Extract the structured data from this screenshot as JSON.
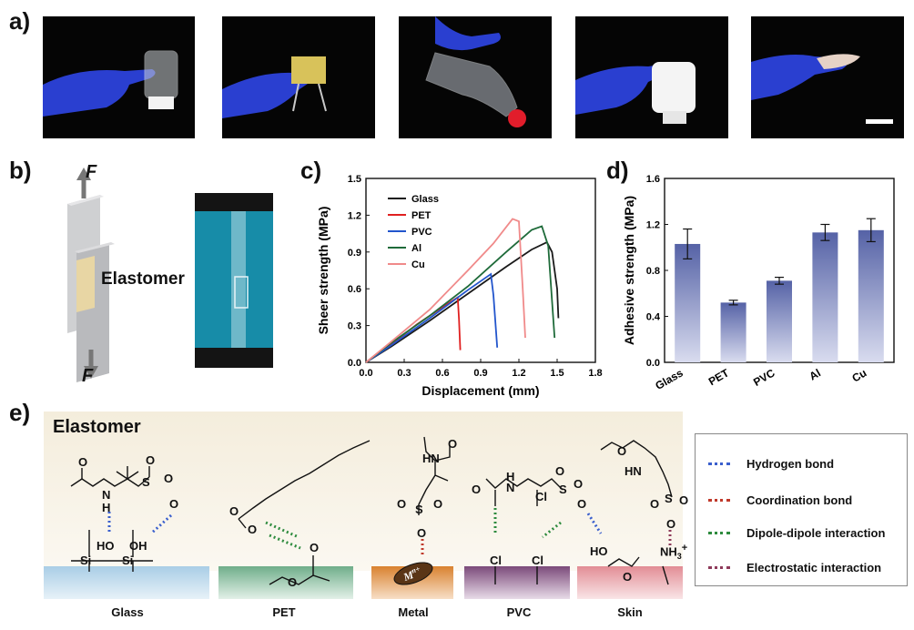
{
  "panels": {
    "a": "a)",
    "b": "b)",
    "c": "c)",
    "d": "d)",
    "e": "e)"
  },
  "panel_b": {
    "force_top": "F",
    "force_bottom": "F",
    "elastomer_label": "Elastomer"
  },
  "panel_e": {
    "title": "Elastomer",
    "substrates": [
      "Glass",
      "PET",
      "Metal",
      "PVC",
      "Skin"
    ],
    "legend": [
      {
        "label": "Hydrogen bond",
        "color": "#3a5fcd"
      },
      {
        "label": "Coordination bond",
        "color": "#c0392b"
      },
      {
        "label": "Dipole-dipole interaction",
        "color": "#2e8b3e"
      },
      {
        "label": "Electrostatic interaction",
        "color": "#8e3a5a"
      }
    ],
    "metal_ion": "M",
    "metal_ion_charge": "n+",
    "ammonium": "NH",
    "ammonium_sub": "3",
    "ammonium_charge": "+"
  },
  "chart_data": [
    {
      "type": "line",
      "panel": "c",
      "xlabel": "Displacement (mm)",
      "ylabel": "Sheer strength (MPa)",
      "xlim": [
        0.0,
        1.8
      ],
      "ylim": [
        0.0,
        1.5
      ],
      "xticks": [
        "0.0",
        "0.3",
        "0.6",
        "0.9",
        "1.2",
        "1.5",
        "1.8"
      ],
      "yticks": [
        "0.0",
        "0.3",
        "0.6",
        "0.9",
        "1.2",
        "1.5"
      ],
      "legend_position": "top-left",
      "series": [
        {
          "name": "Glass",
          "color": "#1a1a1a",
          "x": [
            0,
            0.2,
            0.5,
            0.8,
            1.1,
            1.3,
            1.42,
            1.46,
            1.5,
            1.51
          ],
          "y": [
            0,
            0.13,
            0.34,
            0.56,
            0.78,
            0.92,
            0.98,
            0.9,
            0.6,
            0.36
          ]
        },
        {
          "name": "PET",
          "color": "#e02020",
          "x": [
            0,
            0.2,
            0.4,
            0.6,
            0.72,
            0.73,
            0.74
          ],
          "y": [
            0,
            0.15,
            0.31,
            0.45,
            0.53,
            0.35,
            0.1
          ]
        },
        {
          "name": "PVC",
          "color": "#2255cc",
          "x": [
            0,
            0.2,
            0.5,
            0.8,
            0.98,
            1.0,
            1.03
          ],
          "y": [
            0,
            0.14,
            0.36,
            0.59,
            0.72,
            0.55,
            0.12
          ]
        },
        {
          "name": "Al",
          "color": "#1f6b3a",
          "x": [
            0,
            0.2,
            0.5,
            0.8,
            1.1,
            1.3,
            1.38,
            1.43,
            1.46,
            1.48
          ],
          "y": [
            0,
            0.16,
            0.38,
            0.62,
            0.9,
            1.08,
            1.11,
            0.95,
            0.5,
            0.2
          ]
        },
        {
          "name": "Cu",
          "color": "#f08a8a",
          "x": [
            0,
            0.2,
            0.5,
            0.8,
            1.0,
            1.15,
            1.2,
            1.23,
            1.25
          ],
          "y": [
            0,
            0.17,
            0.43,
            0.75,
            0.97,
            1.17,
            1.15,
            0.6,
            0.2
          ]
        }
      ]
    },
    {
      "type": "bar",
      "panel": "d",
      "ylabel": "Adhesive strength (MPa)",
      "ylim": [
        0.0,
        1.6
      ],
      "yticks": [
        "0.0",
        "0.4",
        "0.8",
        "1.2",
        "1.6"
      ],
      "categories": [
        "Glass",
        "PET",
        "PVC",
        "Al",
        "Cu"
      ],
      "values": [
        1.03,
        0.52,
        0.71,
        1.13,
        1.15
      ],
      "errors": [
        0.13,
        0.02,
        0.03,
        0.07,
        0.1
      ]
    }
  ]
}
